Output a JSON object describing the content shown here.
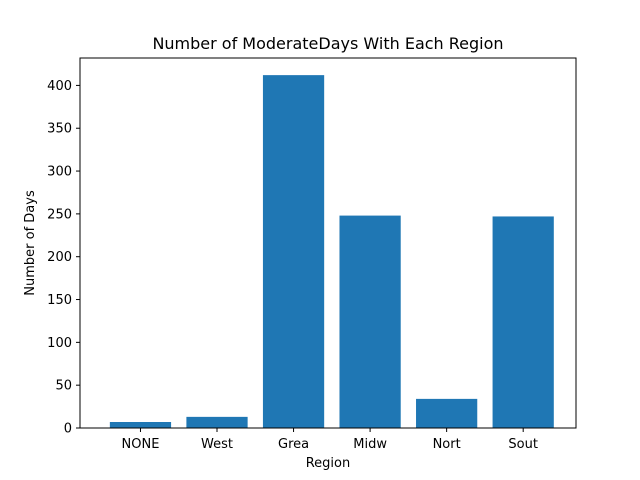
{
  "chart_data": {
    "type": "bar",
    "title": "Number of ModerateDays With Each Region",
    "xlabel": "Region",
    "ylabel": "Number of Days",
    "categories": [
      "NONE",
      "West",
      "Grea",
      "Midw",
      "Nort",
      "Sout"
    ],
    "values": [
      7,
      13,
      412,
      248,
      34,
      247
    ],
    "ylim": [
      0,
      432
    ],
    "yticks": [
      0,
      50,
      100,
      150,
      200,
      250,
      300,
      350,
      400
    ],
    "grid": false,
    "bar_color": "#1f77b4"
  }
}
